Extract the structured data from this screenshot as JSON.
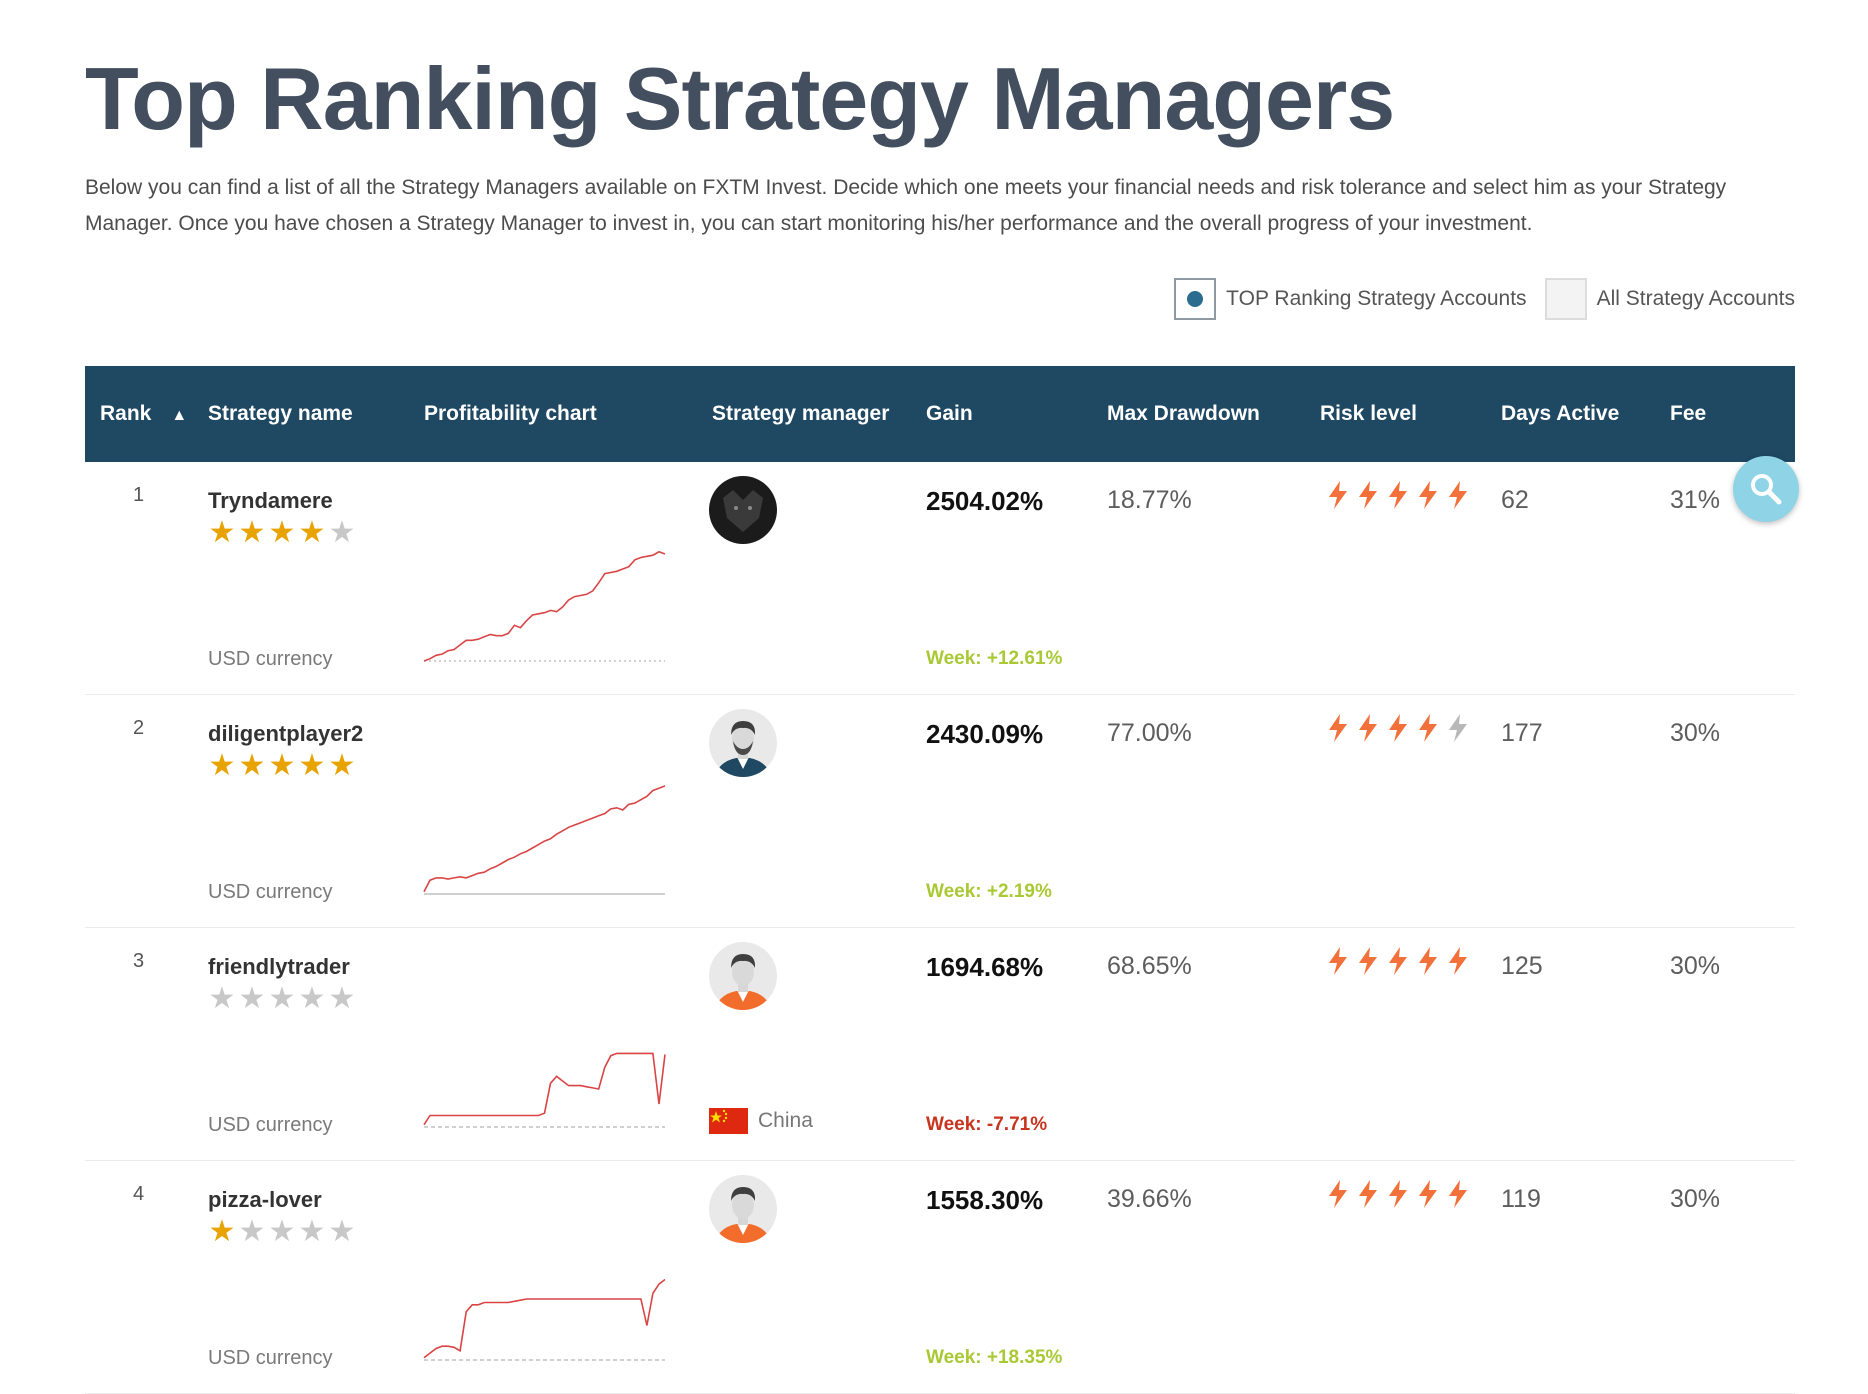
{
  "page": {
    "title": "Top Ranking Strategy Managers",
    "intro": "Below you can find a list of all the Strategy Managers available on FXTM Invest. Decide which one meets your financial needs and risk tolerance and select him as your Strategy Manager. Once you have chosen a Strategy Manager to invest in, you can start monitoring his/her performance and the overall progress of your investment."
  },
  "filters": {
    "top_label": "TOP Ranking Strategy Accounts",
    "top_selected": true,
    "all_label": "All Strategy Accounts",
    "all_selected": false
  },
  "table": {
    "headers": {
      "rank": "Rank",
      "strategy_name": "Strategy name",
      "chart": "Profitability chart",
      "manager": "Strategy manager",
      "gain": "Gain",
      "drawdown": "Max Drawdown",
      "risk": "Risk level",
      "days": "Days Active",
      "fee": "Fee"
    },
    "sort": {
      "column": "Rank",
      "direction": "ascending",
      "icon": "sort-up-icon"
    },
    "rows": [
      {
        "rank": "1",
        "name": "Tryndamere",
        "stars": 4,
        "currency": "USD currency",
        "avatar": "wolf-photo",
        "country": "",
        "gain": "2504.02%",
        "week": "Week: +12.61%",
        "week_sign": "pos",
        "drawdown": "18.77%",
        "risk": 5,
        "days": "62",
        "fee": "31%",
        "chart_points": [
          0,
          2,
          5,
          6,
          9,
          10,
          14,
          18,
          18,
          19,
          21,
          23,
          22,
          22,
          24,
          31,
          29,
          35,
          40,
          41,
          42,
          44,
          43,
          47,
          53,
          56,
          57,
          58,
          61,
          68,
          76,
          77,
          78,
          80,
          82,
          88,
          90,
          91,
          92,
          95,
          93
        ],
        "chart_baseline": "dotted"
      },
      {
        "rank": "2",
        "name": "diligentplayer2",
        "stars": 5,
        "currency": "USD currency",
        "avatar": "man-bearded-avatar",
        "country": "",
        "gain": "2430.09%",
        "week": "Week: +2.19%",
        "week_sign": "pos",
        "drawdown": "77.00%",
        "risk": 4,
        "days": "177",
        "fee": "30%",
        "chart_points": [
          2,
          12,
          14,
          14,
          13,
          14,
          15,
          14,
          16,
          18,
          19,
          22,
          24,
          27,
          30,
          32,
          35,
          37,
          40,
          43,
          46,
          48,
          52,
          55,
          58,
          60,
          62,
          64,
          66,
          68,
          70,
          74,
          75,
          73,
          78,
          79,
          82,
          85,
          90,
          92,
          94
        ],
        "chart_baseline": "solid"
      },
      {
        "rank": "3",
        "name": "friendlytrader",
        "stars": 0,
        "currency": "USD currency",
        "avatar": "man-orange-avatar",
        "country": "China",
        "gain": "1694.68%",
        "week": "Week: -7.71%",
        "week_sign": "neg",
        "drawdown": "68.65%",
        "risk": 5,
        "days": "125",
        "fee": "30%",
        "chart_points": [
          2,
          10,
          10,
          10,
          10,
          10,
          10,
          10,
          10,
          10,
          10,
          10,
          10,
          10,
          10,
          10,
          10,
          10,
          10,
          10,
          12,
          38,
          44,
          40,
          36,
          36,
          36,
          35,
          34,
          33,
          52,
          62,
          64,
          64,
          64,
          64,
          64,
          64,
          64,
          20,
          63
        ],
        "chart_baseline": "dashed"
      },
      {
        "rank": "4",
        "name": "pizza-lover",
        "stars": 1,
        "currency": "USD currency",
        "avatar": "man-orange-avatar",
        "country": "",
        "gain": "1558.30%",
        "week": "Week: +18.35%",
        "week_sign": "pos",
        "drawdown": "39.66%",
        "risk": 5,
        "days": "119",
        "fee": "30%",
        "chart_points": [
          2,
          6,
          10,
          12,
          12,
          11,
          8,
          42,
          48,
          48,
          50,
          50,
          50,
          50,
          50,
          51,
          52,
          53,
          53,
          53,
          53,
          53,
          53,
          53,
          53,
          53,
          53,
          53,
          53,
          53,
          53,
          53,
          53,
          53,
          53,
          53,
          53,
          30,
          58,
          66,
          70
        ],
        "chart_baseline": "dashed"
      }
    ]
  },
  "colors": {
    "header_bg": "#1f4863",
    "star_on": "#e8a300",
    "star_off": "#c8c8c8",
    "bolt_on": "#f2703a",
    "bolt_off": "#b8b8b8",
    "chart_line": "#d94545",
    "week_pos": "#a9c934",
    "week_neg": "#c8341e"
  },
  "fab": {
    "icon": "search-icon"
  }
}
